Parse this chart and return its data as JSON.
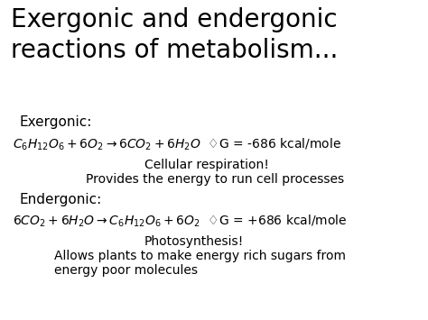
{
  "bg_color": "#ffffff",
  "title_line1": "Exergonic and endergonic",
  "title_line2": "reactions of metabolism...",
  "title_fontsize": 20,
  "body_font": "Comic Sans MS",
  "exergonic_label": "Exergonic:",
  "exergonic_note1": "Cellular respiration!",
  "exergonic_note2": "Provides the energy to run cell processes",
  "endergonic_label": "Endergonic:",
  "endergonic_note1": "Photosynthesis!",
  "endergonic_note2": "Allows plants to make energy rich sugars from",
  "endergonic_note3": "energy poor molecules",
  "label_fontsize": 11,
  "eq_fontsize": 10,
  "note_fontsize": 10,
  "delta_symbol": "♢G"
}
